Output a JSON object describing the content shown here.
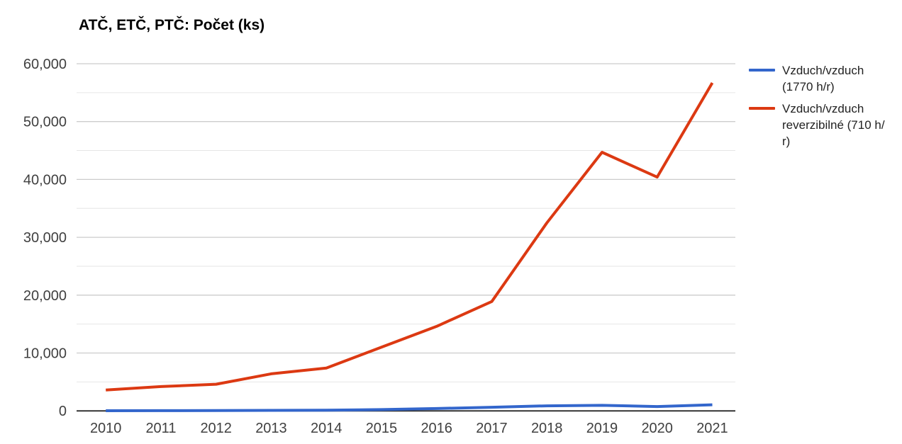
{
  "chart": {
    "title": "ATČ, ETČ, PTČ: Počet (ks)"
  },
  "chart_data": {
    "type": "line",
    "title": "ATČ, ETČ, PTČ: Počet (ks)",
    "xlabel": "",
    "ylabel": "",
    "categories": [
      "2010",
      "2011",
      "2012",
      "2013",
      "2014",
      "2015",
      "2016",
      "2017",
      "2018",
      "2019",
      "2020",
      "2021"
    ],
    "series": [
      {
        "name": "Vzduch/vzduch (1770 h/r)",
        "color": "#3366CC",
        "values": [
          30,
          40,
          60,
          80,
          120,
          220,
          400,
          620,
          870,
          950,
          750,
          1050
        ]
      },
      {
        "name": "Vzduch/vzduch reverzibilné (710 h/r)",
        "color": "#DC3912",
        "values": [
          3600,
          4200,
          4600,
          6400,
          7400,
          11000,
          14600,
          18900,
          32500,
          44700,
          40400,
          56700
        ]
      }
    ],
    "ylim": [
      0,
      60000
    ],
    "y_ticks": [
      {
        "value": 0,
        "label": "0"
      },
      {
        "value": 10000,
        "label": "10,000"
      },
      {
        "value": 20000,
        "label": "20,000"
      },
      {
        "value": 30000,
        "label": "30,000"
      },
      {
        "value": 40000,
        "label": "40,000"
      },
      {
        "value": 50000,
        "label": "50,000"
      },
      {
        "value": 60000,
        "label": "60,000"
      }
    ],
    "minor_grid_step": 5000,
    "grid": true,
    "legend_position": "right"
  },
  "legend": {
    "items": [
      {
        "color": "#3366CC",
        "lines": [
          "Vzduch/vzduch",
          "(1770 h/r)"
        ]
      },
      {
        "color": "#DC3912",
        "lines": [
          "Vzduch/vzduch",
          "reverzibilné (710 h/",
          "r)"
        ]
      }
    ]
  },
  "colors": {
    "major_grid": "#cccccc",
    "minor_grid": "#e6e6e6",
    "baseline": "#333333",
    "tick_label": "#404040",
    "legend_text": "#222222",
    "title_text": "#000000",
    "background": "#ffffff"
  }
}
